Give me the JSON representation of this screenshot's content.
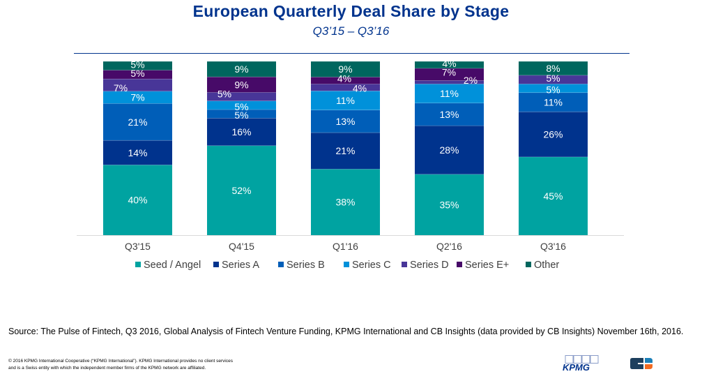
{
  "header": {
    "title": "European Quarterly Deal Share by Stage",
    "subtitle": "Q3’15 – Q3’16"
  },
  "chart_data": {
    "type": "bar",
    "stacked": true,
    "title": "European Quarterly Deal Share by Stage",
    "subtitle": "Q3’15 – Q3’16",
    "xlabel": "",
    "ylabel": "",
    "ylim": [
      0,
      100
    ],
    "grid": false,
    "legend_position": "bottom",
    "categories": [
      "Q3'15",
      "Q4'15",
      "Q1'16",
      "Q2'16",
      "Q3'16"
    ],
    "series": [
      {
        "name": "Seed / Angel",
        "color": "#00A3A1",
        "values": [
          40,
          52,
          38,
          35,
          45
        ]
      },
      {
        "name": "Series A",
        "color": "#00338D",
        "values": [
          14,
          16,
          21,
          28,
          26
        ]
      },
      {
        "name": "Series B",
        "color": "#005EB8",
        "values": [
          21,
          5,
          13,
          13,
          11
        ]
      },
      {
        "name": "Series C",
        "color": "#0091DA",
        "values": [
          7,
          5,
          11,
          11,
          5
        ]
      },
      {
        "name": "Series D",
        "color": "#483698",
        "values": [
          7,
          5,
          4,
          2,
          5
        ]
      },
      {
        "name": "Series E+",
        "color": "#470A68",
        "values": [
          5,
          9,
          4,
          7,
          0
        ]
      },
      {
        "name": "Other",
        "color": "#00665E",
        "values": [
          5,
          9,
          9,
          4,
          8
        ]
      }
    ],
    "value_suffix": "%"
  },
  "footer": {
    "source": "Source: The Pulse of Fintech, Q3 2016, Global Analysis of Fintech Venture Funding, KPMG International and CB Insights (data provided by CB Insights) November 16th, 2016.",
    "copyright_line1": "© 2016 KPMG International Cooperative (“KPMG International”). KPMG International provides no client services",
    "copyright_line2": "and is a Swiss entity with which the independent  member  firms of the KPMG network  are affiliated.",
    "logo_kpmg": "KPMG",
    "logo_cb": "CB Insights"
  }
}
